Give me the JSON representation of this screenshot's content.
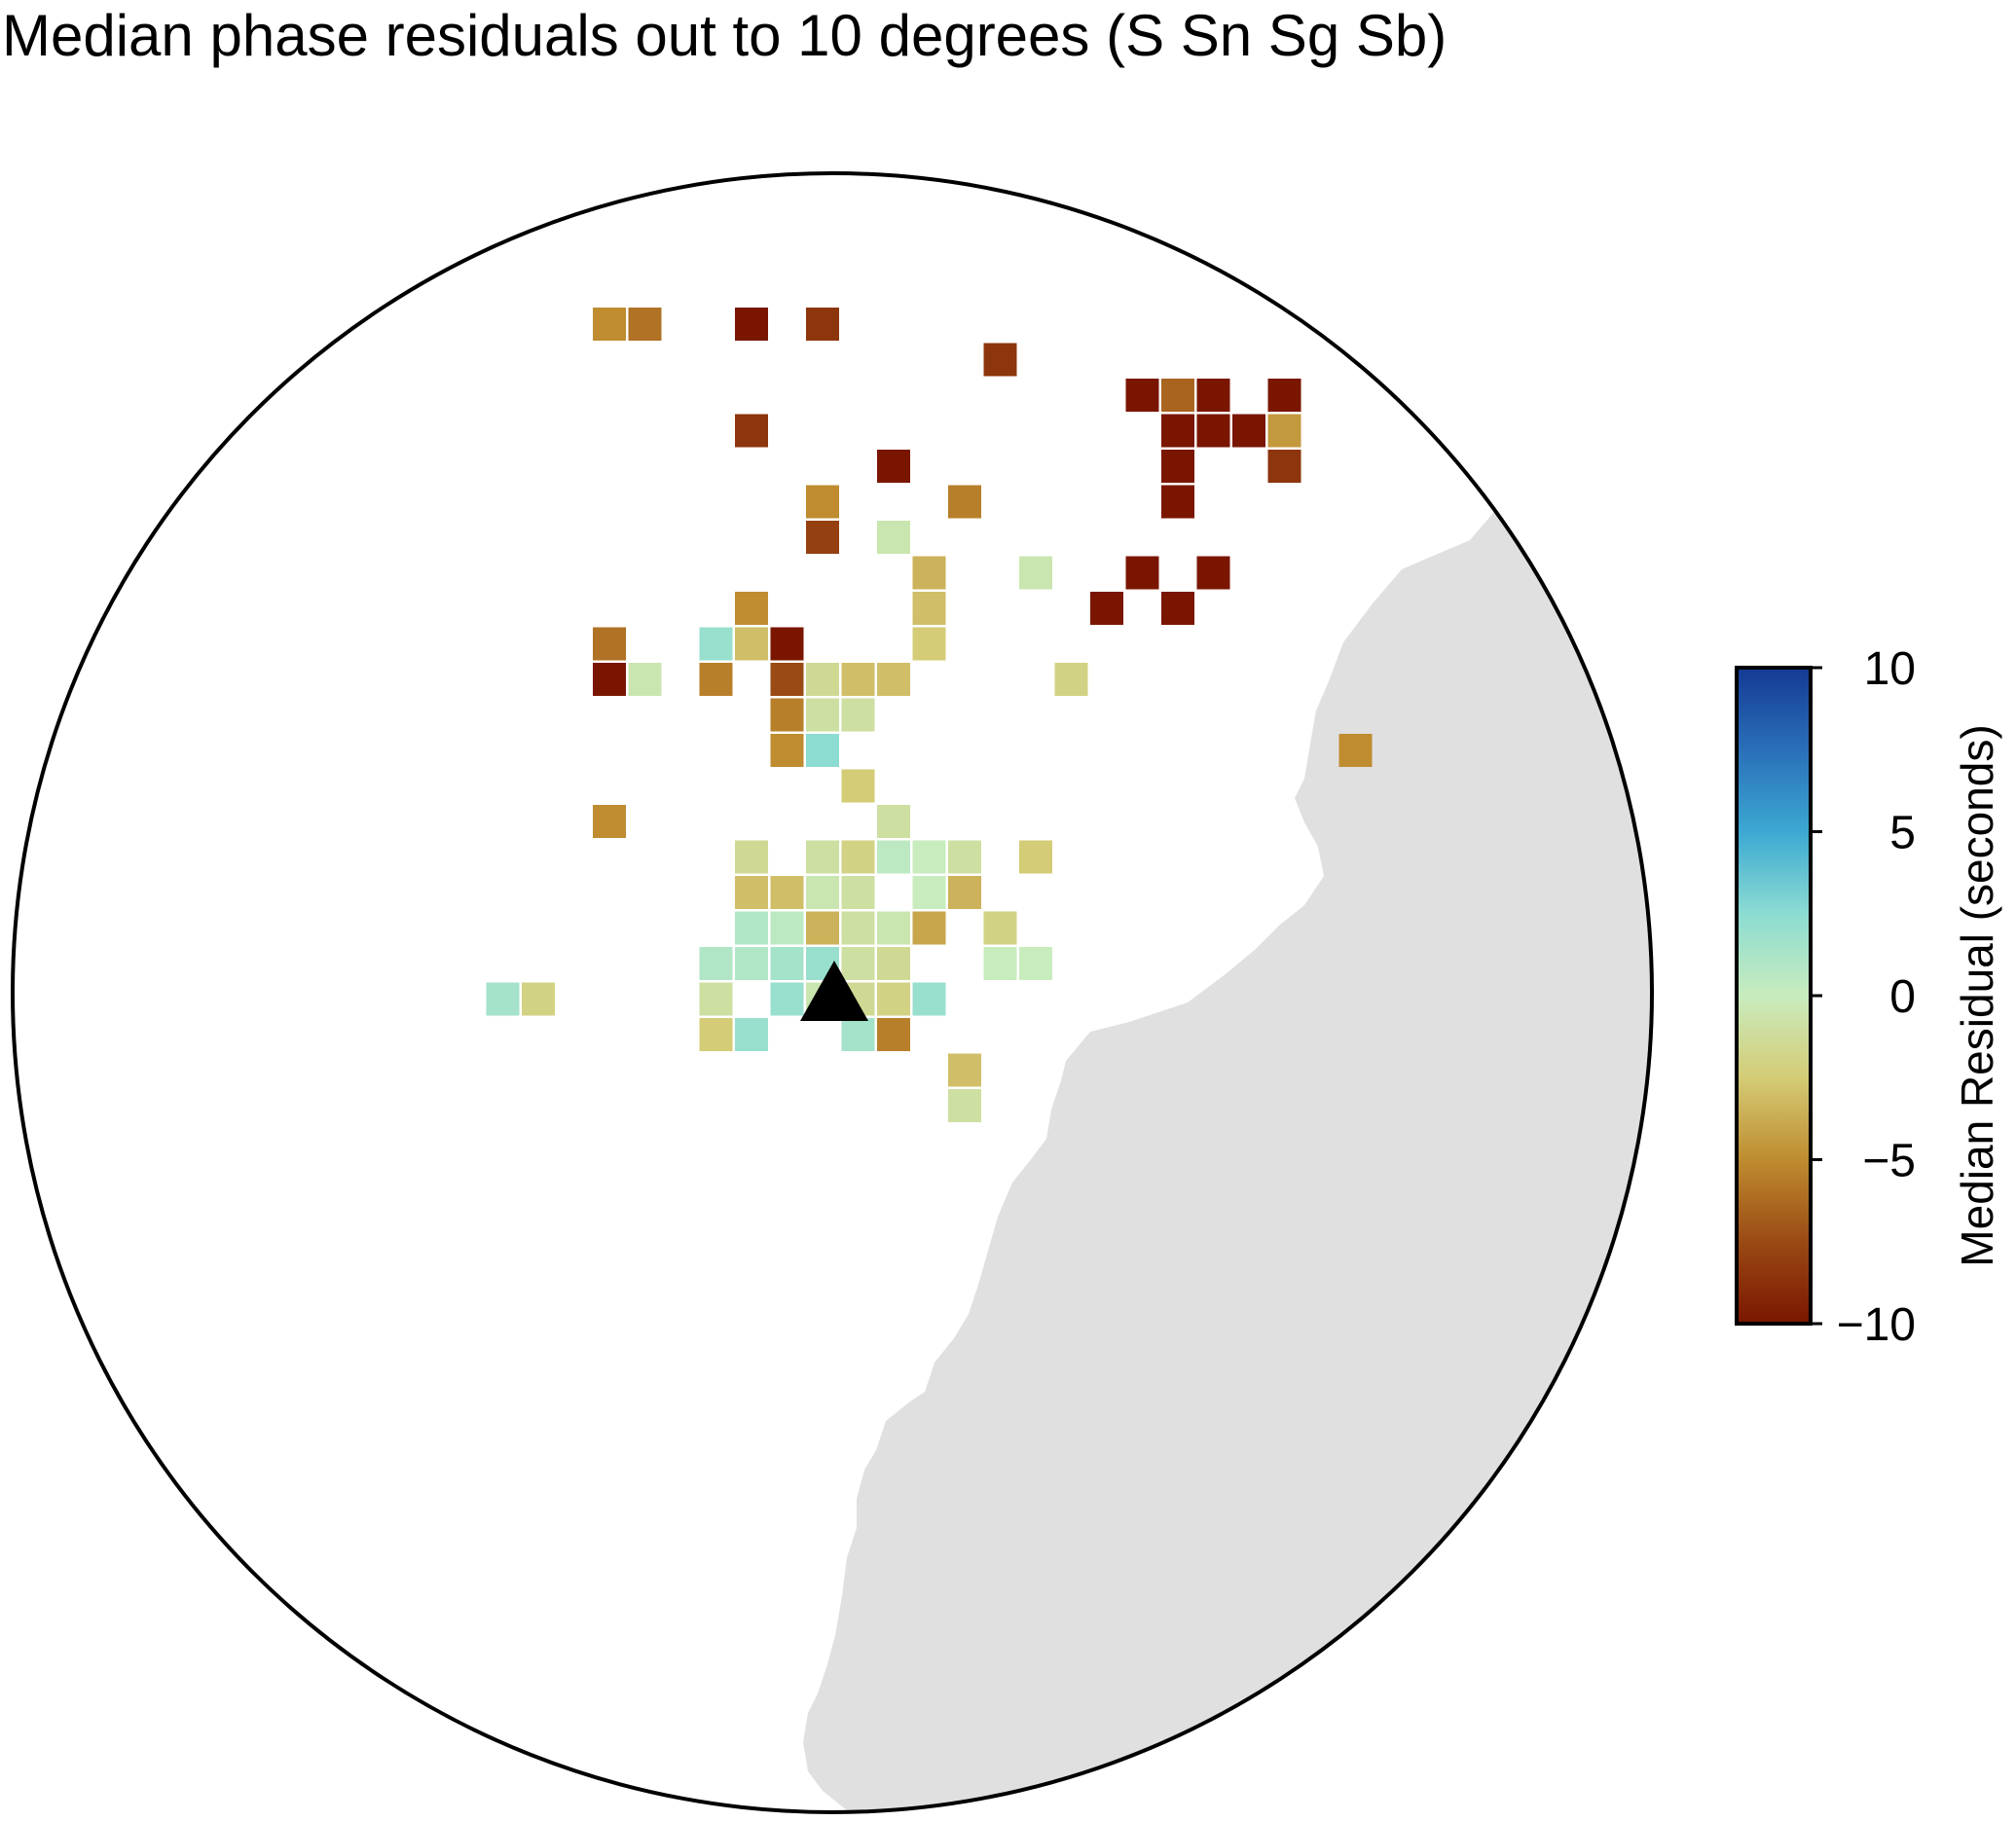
{
  "title": "Median phase residuals out to 10 degrees (S Sn Sg Sb)",
  "colors": {
    "land": "#e0e0e0",
    "ocean": "#ffffff",
    "border": "#000000",
    "station": "#000000"
  },
  "colorbar": {
    "label": "Median Residual (seconds)",
    "min": -10,
    "max": 10,
    "ticks": [
      {
        "value": 10,
        "label": "10"
      },
      {
        "value": 5,
        "label": "5"
      },
      {
        "value": 0,
        "label": "0"
      },
      {
        "value": -5,
        "label": "−5"
      },
      {
        "value": -10,
        "label": "−10"
      }
    ],
    "stops": [
      {
        "value": -10,
        "color": "#7a1600"
      },
      {
        "value": -7.5,
        "color": "#9a4a14"
      },
      {
        "value": -5,
        "color": "#bf8c30"
      },
      {
        "value": -2.5,
        "color": "#d4cc76"
      },
      {
        "value": 0,
        "color": "#c8ecbe"
      },
      {
        "value": 2.5,
        "color": "#8cdcd2"
      },
      {
        "value": 5,
        "color": "#3ca8d2"
      },
      {
        "value": 7.5,
        "color": "#2a6fb8"
      },
      {
        "value": 10,
        "color": "#143a94"
      }
    ]
  },
  "residual_cells": [
    {
      "col": -6,
      "row": -20,
      "value": -5
    },
    {
      "col": -5,
      "row": -20,
      "value": -6
    },
    {
      "col": -2,
      "row": -20,
      "value": -10
    },
    {
      "col": 0,
      "row": -20,
      "value": -8.5
    },
    {
      "col": 5,
      "row": -19,
      "value": -8.5
    },
    {
      "col": 9,
      "row": -18,
      "value": -10
    },
    {
      "col": 10,
      "row": -18,
      "value": -6.5
    },
    {
      "col": 11,
      "row": -18,
      "value": -10
    },
    {
      "col": 13,
      "row": -18,
      "value": -10
    },
    {
      "col": -2,
      "row": -17,
      "value": -8.5
    },
    {
      "col": 10,
      "row": -17,
      "value": -10
    },
    {
      "col": 11,
      "row": -17,
      "value": -10
    },
    {
      "col": 12,
      "row": -17,
      "value": -10
    },
    {
      "col": 13,
      "row": -17,
      "value": -4.5
    },
    {
      "col": 2,
      "row": -16,
      "value": -10
    },
    {
      "col": 10,
      "row": -16,
      "value": -10
    },
    {
      "col": 13,
      "row": -16,
      "value": -8.5
    },
    {
      "col": 0,
      "row": -15,
      "value": -5
    },
    {
      "col": 4,
      "row": -15,
      "value": -5.5
    },
    {
      "col": 10,
      "row": -15,
      "value": -10
    },
    {
      "col": 0,
      "row": -14,
      "value": -8
    },
    {
      "col": 2,
      "row": -14,
      "value": -0.5
    },
    {
      "col": 3,
      "row": -13,
      "value": -3.5
    },
    {
      "col": 6,
      "row": -13,
      "value": -0.5
    },
    {
      "col": 9,
      "row": -13,
      "value": -10
    },
    {
      "col": 11,
      "row": -13,
      "value": -10
    },
    {
      "col": -2,
      "row": -12,
      "value": -5
    },
    {
      "col": 3,
      "row": -12,
      "value": -3
    },
    {
      "col": 8,
      "row": -12,
      "value": -10
    },
    {
      "col": 10,
      "row": -12,
      "value": -10
    },
    {
      "col": -6,
      "row": -11,
      "value": -6
    },
    {
      "col": -3,
      "row": -11,
      "value": 2
    },
    {
      "col": -2,
      "row": -11,
      "value": -3
    },
    {
      "col": -1,
      "row": -11,
      "value": -10
    },
    {
      "col": 3,
      "row": -11,
      "value": -2.5
    },
    {
      "col": -6,
      "row": -10,
      "value": -10
    },
    {
      "col": -5,
      "row": -10,
      "value": -0.5
    },
    {
      "col": -3,
      "row": -10,
      "value": -5.5
    },
    {
      "col": -1,
      "row": -10,
      "value": -7.5
    },
    {
      "col": 0,
      "row": -10,
      "value": -1.5
    },
    {
      "col": 1,
      "row": -10,
      "value": -3
    },
    {
      "col": 2,
      "row": -10,
      "value": -3
    },
    {
      "col": 7,
      "row": -10,
      "value": -2
    },
    {
      "col": -1,
      "row": -9,
      "value": -5.5
    },
    {
      "col": 0,
      "row": -9,
      "value": -1
    },
    {
      "col": 1,
      "row": -9,
      "value": -1
    },
    {
      "col": -1,
      "row": -8,
      "value": -5
    },
    {
      "col": 0,
      "row": -8,
      "value": 2.5
    },
    {
      "col": 15,
      "row": -8,
      "value": -5
    },
    {
      "col": 1,
      "row": -7,
      "value": -2.5
    },
    {
      "col": -6,
      "row": -6,
      "value": -5
    },
    {
      "col": 2,
      "row": -6,
      "value": -1
    },
    {
      "col": -2,
      "row": -5,
      "value": -1.5
    },
    {
      "col": 0,
      "row": -5,
      "value": -1
    },
    {
      "col": 1,
      "row": -5,
      "value": -2
    },
    {
      "col": 2,
      "row": -5,
      "value": 0.5
    },
    {
      "col": 3,
      "row": -5,
      "value": 0
    },
    {
      "col": 4,
      "row": -5,
      "value": -1
    },
    {
      "col": 6,
      "row": -5,
      "value": -2.5
    },
    {
      "col": -2,
      "row": -4,
      "value": -3
    },
    {
      "col": -1,
      "row": -4,
      "value": -3
    },
    {
      "col": 0,
      "row": -4,
      "value": -0.5
    },
    {
      "col": 1,
      "row": -4,
      "value": -1
    },
    {
      "col": 3,
      "row": -4,
      "value": 0
    },
    {
      "col": 4,
      "row": -4,
      "value": -3.5
    },
    {
      "col": -2,
      "row": -3,
      "value": 1
    },
    {
      "col": -1,
      "row": -3,
      "value": 0.5
    },
    {
      "col": 0,
      "row": -3,
      "value": -3.5
    },
    {
      "col": 1,
      "row": -3,
      "value": -1
    },
    {
      "col": 2,
      "row": -3,
      "value": -0.5
    },
    {
      "col": 3,
      "row": -3,
      "value": -4
    },
    {
      "col": 5,
      "row": -3,
      "value": -2
    },
    {
      "col": -3,
      "row": -2,
      "value": 1
    },
    {
      "col": -2,
      "row": -2,
      "value": 1
    },
    {
      "col": -1,
      "row": -2,
      "value": 1.5
    },
    {
      "col": 0,
      "row": -2,
      "value": 2
    },
    {
      "col": 1,
      "row": -2,
      "value": -1
    },
    {
      "col": 2,
      "row": -2,
      "value": -1.5
    },
    {
      "col": 5,
      "row": -2,
      "value": 0
    },
    {
      "col": 6,
      "row": -2,
      "value": 0
    },
    {
      "col": -9,
      "row": -1,
      "value": 1.5
    },
    {
      "col": -8,
      "row": -1,
      "value": -2
    },
    {
      "col": -3,
      "row": -1,
      "value": -1
    },
    {
      "col": -1,
      "row": -1,
      "value": 2
    },
    {
      "col": 0,
      "row": -1,
      "value": -0.5
    },
    {
      "col": 1,
      "row": -1,
      "value": -1.5
    },
    {
      "col": 2,
      "row": -1,
      "value": -2
    },
    {
      "col": 3,
      "row": -1,
      "value": 2
    },
    {
      "col": -3,
      "row": 0,
      "value": -2.5
    },
    {
      "col": -2,
      "row": 0,
      "value": 2
    },
    {
      "col": 1,
      "row": 0,
      "value": 1.5
    },
    {
      "col": 2,
      "row": 0,
      "value": -5.5
    },
    {
      "col": 4,
      "row": 1,
      "value": -3
    },
    {
      "col": 4,
      "row": 2,
      "value": -1
    }
  ]
}
